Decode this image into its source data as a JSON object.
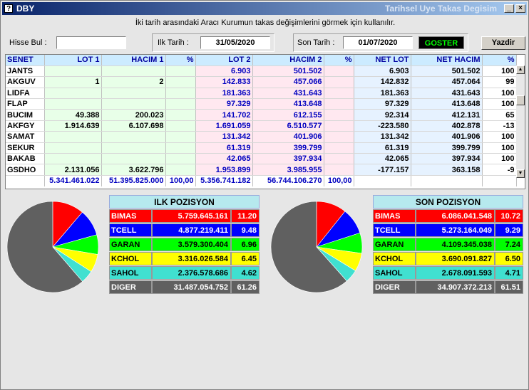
{
  "window": {
    "title": "DBY",
    "subtitle": "Tarihsel Uye Takas Degisim",
    "app_icon": "?"
  },
  "info_text": "İki tarih arasındaki  Aracı Kurumun takas değişimlerini görmek için kullanılır.",
  "filters": {
    "hisse_label": "Hisse Bul :",
    "hisse_value": "",
    "ilk_label": "Ilk Tarih :",
    "ilk_value": "31/05/2020",
    "son_label": "Son Tarih :",
    "son_value": "01/07/2020",
    "goster_label": "GOSTER",
    "yazdir_label": "Yazdir"
  },
  "table": {
    "headers": [
      "SENET",
      "LOT 1",
      "HACIM 1",
      "%",
      "LOT 2",
      "HACIM 2",
      "%",
      "NET LOT",
      "NET HACIM",
      "%"
    ],
    "rows": [
      [
        "JANTS",
        "",
        "",
        "",
        "6.903",
        "501.502",
        "",
        "6.903",
        "501.502",
        "100"
      ],
      [
        "AKGUV",
        "1",
        "2",
        "",
        "142.833",
        "457.066",
        "",
        "142.832",
        "457.064",
        "99"
      ],
      [
        "LIDFA",
        "",
        "",
        "",
        "181.363",
        "431.643",
        "",
        "181.363",
        "431.643",
        "100"
      ],
      [
        "FLAP",
        "",
        "",
        "",
        "97.329",
        "413.648",
        "",
        "97.329",
        "413.648",
        "100"
      ],
      [
        "BUCIM",
        "49.388",
        "200.023",
        "",
        "141.702",
        "612.155",
        "",
        "92.314",
        "412.131",
        "65"
      ],
      [
        "AKFGY",
        "1.914.639",
        "6.107.698",
        "",
        "1.691.059",
        "6.510.577",
        "",
        "-223.580",
        "402.878",
        "-13"
      ],
      [
        "SAMAT",
        "",
        "",
        "",
        "131.342",
        "401.906",
        "",
        "131.342",
        "401.906",
        "100"
      ],
      [
        "SEKUR",
        "",
        "",
        "",
        "61.319",
        "399.799",
        "",
        "61.319",
        "399.799",
        "100"
      ],
      [
        "BAKAB",
        "",
        "",
        "",
        "42.065",
        "397.934",
        "",
        "42.065",
        "397.934",
        "100"
      ],
      [
        "GSDHO",
        "2.131.056",
        "3.622.796",
        "",
        "1.953.899",
        "3.985.955",
        "",
        "-177.157",
        "363.158",
        "-9"
      ]
    ],
    "totals": [
      "",
      "5.341.461.022",
      "51.395.825.000",
      "100,00",
      "5.356.741.182",
      "56.744.106.270",
      "100,00",
      "",
      "",
      ""
    ]
  },
  "ilk_pozisyon": {
    "title": "ILK POZISYON",
    "items": [
      {
        "name": "BIMAS",
        "value": "5.759.645.161",
        "pct": "11.20",
        "pct_num": 11.2,
        "color": "#ff0000",
        "text": "#ffffff"
      },
      {
        "name": "TCELL",
        "value": "4.877.219.411",
        "pct": "9.48",
        "pct_num": 9.48,
        "color": "#0000ff",
        "text": "#ffffff"
      },
      {
        "name": "GARAN",
        "value": "3.579.300.404",
        "pct": "6.96",
        "pct_num": 6.96,
        "color": "#00ff00",
        "text": "#000000"
      },
      {
        "name": "KCHOL",
        "value": "3.316.026.584",
        "pct": "6.45",
        "pct_num": 6.45,
        "color": "#ffff00",
        "text": "#000000"
      },
      {
        "name": "SAHOL",
        "value": "2.376.578.686",
        "pct": "4.62",
        "pct_num": 4.62,
        "color": "#40e0d0",
        "text": "#000000"
      },
      {
        "name": "DIGER",
        "value": "31.487.054.752",
        "pct": "61.26",
        "pct_num": 61.26,
        "color": "#606060",
        "text": "#ffffff"
      }
    ]
  },
  "son_pozisyon": {
    "title": "SON POZISYON",
    "items": [
      {
        "name": "BIMAS",
        "value": "6.086.041.548",
        "pct": "10.72",
        "pct_num": 10.72,
        "color": "#ff0000",
        "text": "#ffffff"
      },
      {
        "name": "TCELL",
        "value": "5.273.164.049",
        "pct": "9.29",
        "pct_num": 9.29,
        "color": "#0000ff",
        "text": "#ffffff"
      },
      {
        "name": "GARAN",
        "value": "4.109.345.038",
        "pct": "7.24",
        "pct_num": 7.24,
        "color": "#00ff00",
        "text": "#000000"
      },
      {
        "name": "KCHOL",
        "value": "3.690.091.827",
        "pct": "6.50",
        "pct_num": 6.5,
        "color": "#ffff00",
        "text": "#000000"
      },
      {
        "name": "SAHOL",
        "value": "2.678.091.593",
        "pct": "4.71",
        "pct_num": 4.71,
        "color": "#40e0d0",
        "text": "#000000"
      },
      {
        "name": "DIGER",
        "value": "34.907.372.213",
        "pct": "61.51",
        "pct_num": 61.51,
        "color": "#606060",
        "text": "#ffffff"
      }
    ]
  }
}
